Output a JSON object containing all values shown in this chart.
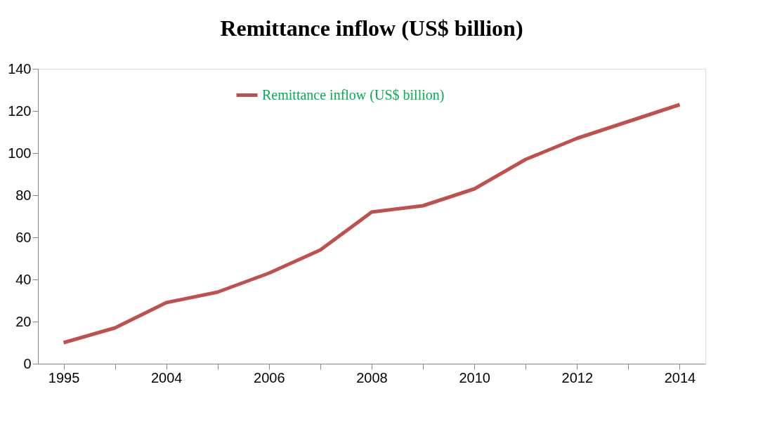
{
  "chart_data": {
    "type": "line",
    "title": "Remittance inflow (US$ billion)",
    "categories": [
      "1995",
      null,
      "2004",
      null,
      "2006",
      null,
      "2008",
      null,
      "2010",
      null,
      "2012",
      null,
      "2014"
    ],
    "series": [
      {
        "name": "Remittance inflow (US$ billion)",
        "color": "#c0504d",
        "values": [
          10,
          17,
          29,
          34,
          43,
          54,
          72,
          75,
          83,
          97,
          107,
          115,
          123
        ]
      }
    ],
    "ylim": [
      0,
      140
    ],
    "yticks": [
      0,
      20,
      40,
      60,
      80,
      100,
      120,
      140
    ],
    "grid": false,
    "legend": "top",
    "marker": "none",
    "line_style": "solid"
  }
}
